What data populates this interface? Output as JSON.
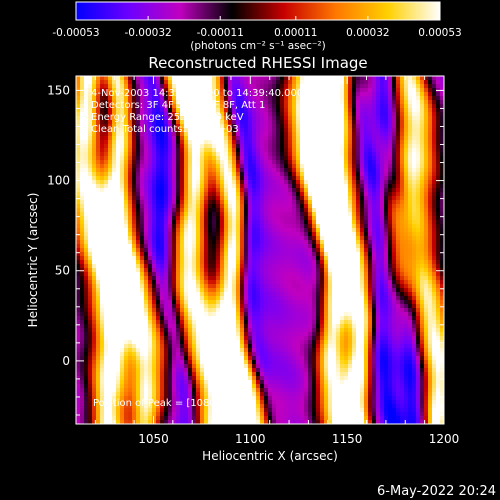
{
  "chart_data": {
    "type": "heatmap",
    "title": "Reconstructed RHESSI Image",
    "xlabel": "Heliocentric X (arcsec)",
    "ylabel": "Heliocentric Y (arcsec)",
    "xlim": [
      1010,
      1200
    ],
    "ylim": [
      -35,
      158
    ],
    "x_ticks": [
      1050,
      1100,
      1150,
      1200
    ],
    "y_ticks": [
      0,
      50,
      100,
      150
    ],
    "colorbar": {
      "range": [
        -0.00053,
        0.00053
      ],
      "tick_values": [
        -0.00053,
        -0.00032,
        -0.00011,
        0.00011,
        0.00032,
        0.00053
      ],
      "tick_labels": [
        "-0.00053",
        "-0.00032",
        "-0.00011",
        "0.00011",
        "0.00032",
        "0.00053"
      ],
      "unit_label": "(photons cm⁻² s⁻¹ asec⁻²)",
      "colormap": [
        "#0000ff",
        "#6a00ff",
        "#c000c0",
        "#000000",
        "#c80000",
        "#ff7800",
        "#ffd000",
        "#ffffff"
      ]
    },
    "annotations": [
      " 4-Nov-2003 14:33:40.000 to 14:39:40.000",
      "Detectors: 3F 4F 5F 6F 7F 8F, Att 1",
      "Energy Range: 25.0 - 50.0 keV",
      "Clean     Total counts: 6.69E+03"
    ],
    "peak_label": "Position of Peak = [1080,-20]",
    "peak": [
      1080,
      -20
    ],
    "bright_ridges_x": [
      1022,
      1036,
      1072,
      1090,
      1140,
      1150,
      1188
    ],
    "dark_lanes_x": [
      1030,
      1057,
      1100,
      1165,
      1180
    ],
    "ridge_slope": -0.09
  },
  "footer": {
    "date": "6-May-2022 20:24"
  }
}
